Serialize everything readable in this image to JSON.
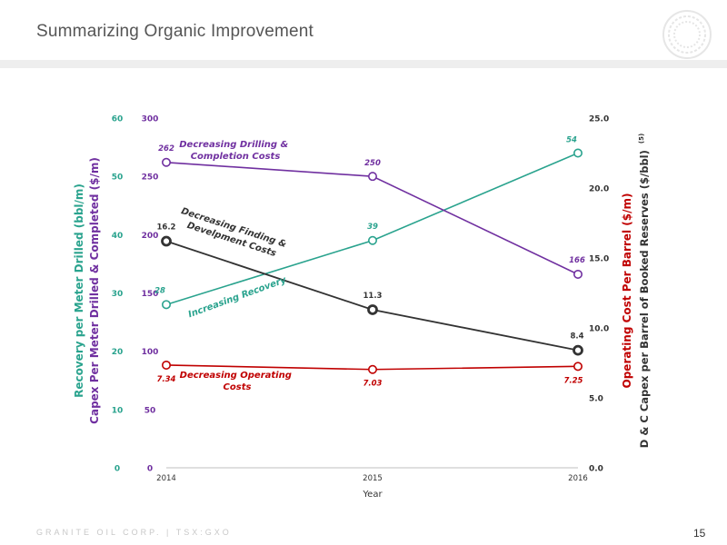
{
  "slide": {
    "title": "Summarizing Organic Improvement",
    "footer": "GRANITE OIL CORP.  |  TSX:GXO",
    "page_number": "15"
  },
  "colors": {
    "teal": "#2aa38e",
    "purple": "#7030a0",
    "dark": "#333333",
    "red": "#c00000"
  },
  "chart_data": {
    "type": "line",
    "x": [
      "2014",
      "2015",
      "2016"
    ],
    "xlabel": "Year",
    "axes": {
      "left_outer": {
        "label": "Recovery per Meter Drilled (bbl/m)",
        "ticks": [
          "0",
          "10",
          "20",
          "30",
          "40",
          "50",
          "60"
        ],
        "range": [
          0,
          60
        ]
      },
      "left_inner": {
        "label": "Capex Per Meter Drilled & Completed ($/m)",
        "ticks": [
          "0",
          "50",
          "100",
          "150",
          "200",
          "250",
          "300"
        ],
        "range": [
          0,
          300
        ]
      },
      "right_inner": {
        "label": "Operating Cost Per Barrel ($/m)",
        "ticks": [
          "0.0",
          "5.0",
          "10.0",
          "15.0",
          "20.0",
          "25.0"
        ],
        "range": [
          0,
          25
        ]
      },
      "right_outer": {
        "label": "D & C Capex per Barrel of Booked Reserves ($/bbl)",
        "superscript": "(5)"
      }
    },
    "series": [
      {
        "key": "recovery",
        "axis": "left_outer",
        "values": [
          28,
          39,
          54
        ],
        "labels": [
          "28",
          "39",
          "54"
        ],
        "color": "#2aa38e",
        "marker": "open-circle"
      },
      {
        "key": "capex_m",
        "axis": "left_inner",
        "values": [
          262,
          250,
          166
        ],
        "labels": [
          "262",
          "250",
          "166"
        ],
        "color": "#7030a0",
        "marker": "open-circle"
      },
      {
        "key": "fd_cost",
        "axis": "right_inner",
        "values": [
          16.2,
          11.3,
          8.4
        ],
        "labels": [
          "16.2",
          "11.3",
          "8.4"
        ],
        "color": "#333333",
        "marker": "bold-circle"
      },
      {
        "key": "opex",
        "axis": "right_inner",
        "values": [
          7.34,
          7.03,
          7.25
        ],
        "labels": [
          "7.34",
          "7.03",
          "7.25"
        ],
        "color": "#c00000",
        "marker": "open-circle"
      }
    ],
    "annotations": {
      "drilling": [
        "Decreasing Drilling &",
        "Completion Costs"
      ],
      "finding": [
        "Decreasing Finding &",
        "Develpment Costs"
      ],
      "recovery": "Increasing Recovery",
      "operating": [
        "Decreasing Operating",
        "Costs"
      ]
    },
    "grid": false,
    "legend": "none"
  }
}
